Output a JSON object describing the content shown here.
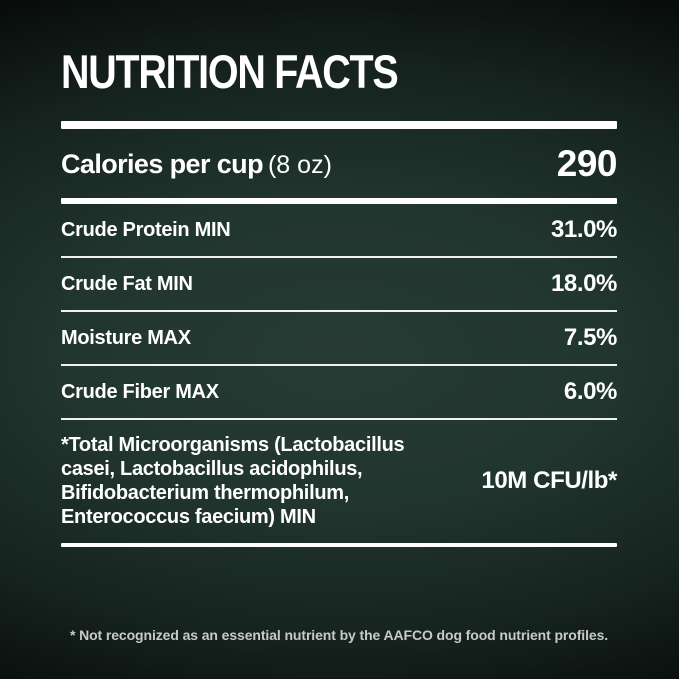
{
  "title": "NUTRITION FACTS",
  "calories": {
    "label": "Calories per cup",
    "unit": "(8 oz)",
    "value": "290"
  },
  "rows": [
    {
      "label": "Crude Protein MIN",
      "value": "31.0%"
    },
    {
      "label": "Crude Fat MIN",
      "value": "18.0%"
    },
    {
      "label": "Moisture MAX",
      "value": "7.5%"
    },
    {
      "label": "Crude Fiber MAX",
      "value": "6.0%"
    },
    {
      "label": "*Total Microorganisms (Lactobacillus casei, Lactobacillus acidophilus, Bifidobacterium thermophilum, Enterococcus faecium) MIN",
      "value": "10M CFU/lb*"
    }
  ],
  "footnote": "* Not recognized as an essential nutrient by the AAFCO dog food nutrient profiles.",
  "colors": {
    "background_center": "#243831",
    "background_edge": "#000000",
    "text": "#ffffff",
    "footnote_text": "#c7cbc8",
    "divider": "#ffffff"
  }
}
